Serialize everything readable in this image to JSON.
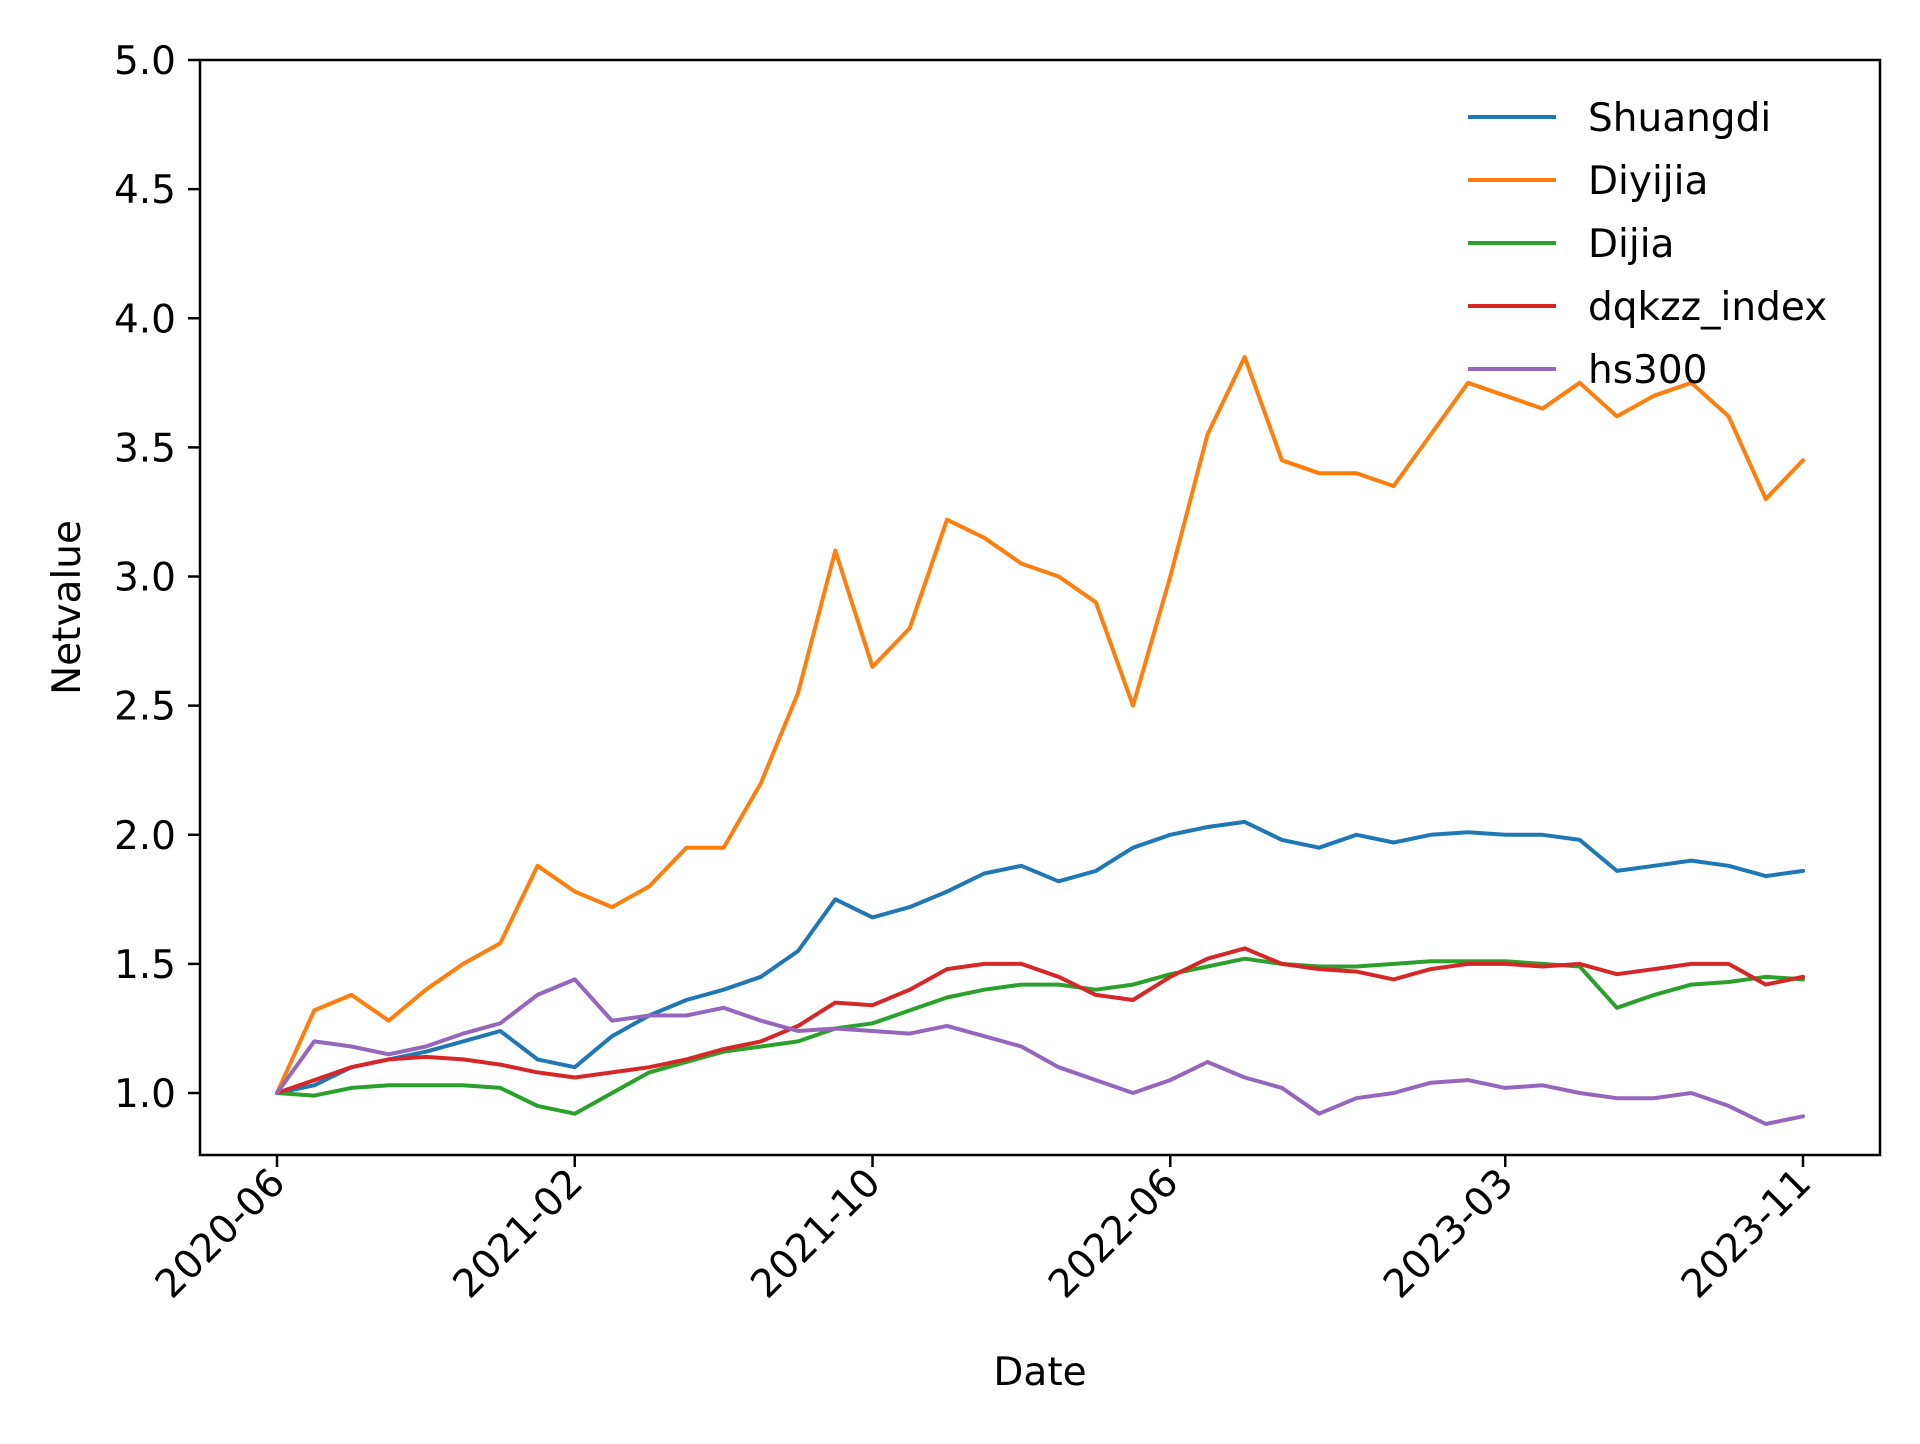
{
  "chart_data": {
    "type": "line",
    "xlabel": "Date",
    "ylabel": "Netvalue",
    "x_ticks": [
      "2020-06",
      "2021-02",
      "2021-10",
      "2022-06",
      "2023-03",
      "2023-11"
    ],
    "x_range": [
      "2020-06",
      "2023-11"
    ],
    "y_ticks": [
      "1.0",
      "1.5",
      "2.0",
      "2.5",
      "3.0",
      "3.5",
      "4.0",
      "4.5",
      "5.0"
    ],
    "ylim": [
      0.76,
      5.0
    ],
    "grid": false,
    "legend_position": "top-right",
    "series": [
      {
        "name": "Shuangdi",
        "color": "#1f77b4",
        "points": [
          [
            "2020-06",
            1.0
          ],
          [
            "2020-07",
            1.03
          ],
          [
            "2020-08",
            1.1
          ],
          [
            "2020-09",
            1.13
          ],
          [
            "2020-10",
            1.16
          ],
          [
            "2020-11",
            1.2
          ],
          [
            "2020-12",
            1.24
          ],
          [
            "2021-01",
            1.13
          ],
          [
            "2021-02",
            1.1
          ],
          [
            "2021-03",
            1.22
          ],
          [
            "2021-04",
            1.3
          ],
          [
            "2021-05",
            1.36
          ],
          [
            "2021-06",
            1.4
          ],
          [
            "2021-07",
            1.45
          ],
          [
            "2021-08",
            1.55
          ],
          [
            "2021-09",
            1.75
          ],
          [
            "2021-10",
            1.68
          ],
          [
            "2021-11",
            1.72
          ],
          [
            "2021-12",
            1.78
          ],
          [
            "2022-01",
            1.85
          ],
          [
            "2022-02",
            1.88
          ],
          [
            "2022-03",
            1.82
          ],
          [
            "2022-04",
            1.86
          ],
          [
            "2022-05",
            1.95
          ],
          [
            "2022-06",
            2.0
          ],
          [
            "2022-07",
            2.03
          ],
          [
            "2022-08",
            2.05
          ],
          [
            "2022-09",
            1.98
          ],
          [
            "2022-10",
            1.95
          ],
          [
            "2022-11",
            2.0
          ],
          [
            "2022-12",
            1.97
          ],
          [
            "2023-01",
            2.0
          ],
          [
            "2023-02",
            2.01
          ],
          [
            "2023-03",
            2.0
          ],
          [
            "2023-04",
            2.0
          ],
          [
            "2023-05",
            1.98
          ],
          [
            "2023-06",
            1.86
          ],
          [
            "2023-07",
            1.88
          ],
          [
            "2023-08",
            1.9
          ],
          [
            "2023-09",
            1.88
          ],
          [
            "2023-10",
            1.84
          ],
          [
            "2023-11",
            1.86
          ]
        ]
      },
      {
        "name": "Diyijia",
        "color": "#ff7f0e",
        "points": [
          [
            "2020-06",
            1.0
          ],
          [
            "2020-07",
            1.32
          ],
          [
            "2020-08",
            1.38
          ],
          [
            "2020-09",
            1.28
          ],
          [
            "2020-10",
            1.4
          ],
          [
            "2020-11",
            1.5
          ],
          [
            "2020-12",
            1.58
          ],
          [
            "2021-01",
            1.88
          ],
          [
            "2021-02",
            1.78
          ],
          [
            "2021-03",
            1.72
          ],
          [
            "2021-04",
            1.8
          ],
          [
            "2021-05",
            1.95
          ],
          [
            "2021-06",
            1.95
          ],
          [
            "2021-07",
            2.2
          ],
          [
            "2021-08",
            2.55
          ],
          [
            "2021-09",
            3.1
          ],
          [
            "2021-10",
            2.65
          ],
          [
            "2021-11",
            2.8
          ],
          [
            "2021-12",
            3.22
          ],
          [
            "2022-01",
            3.15
          ],
          [
            "2022-02",
            3.05
          ],
          [
            "2022-03",
            3.0
          ],
          [
            "2022-04",
            2.9
          ],
          [
            "2022-05",
            2.5
          ],
          [
            "2022-06",
            3.0
          ],
          [
            "2022-07",
            3.55
          ],
          [
            "2022-08",
            3.85
          ],
          [
            "2022-09",
            3.45
          ],
          [
            "2022-10",
            3.4
          ],
          [
            "2022-11",
            3.4
          ],
          [
            "2022-12",
            3.35
          ],
          [
            "2023-01",
            3.55
          ],
          [
            "2023-02",
            3.75
          ],
          [
            "2023-03",
            3.7
          ],
          [
            "2023-04",
            3.65
          ],
          [
            "2023-05",
            3.75
          ],
          [
            "2023-06",
            3.62
          ],
          [
            "2023-07",
            3.7
          ],
          [
            "2023-08",
            3.75
          ],
          [
            "2023-09",
            3.62
          ],
          [
            "2023-10",
            3.3
          ],
          [
            "2023-11",
            3.45
          ]
        ]
      },
      {
        "name": "Dijia",
        "color": "#2ca02c",
        "points": [
          [
            "2020-06",
            1.0
          ],
          [
            "2020-07",
            0.99
          ],
          [
            "2020-08",
            1.02
          ],
          [
            "2020-09",
            1.03
          ],
          [
            "2020-10",
            1.03
          ],
          [
            "2020-11",
            1.03
          ],
          [
            "2020-12",
            1.02
          ],
          [
            "2021-01",
            0.95
          ],
          [
            "2021-02",
            0.92
          ],
          [
            "2021-03",
            1.0
          ],
          [
            "2021-04",
            1.08
          ],
          [
            "2021-05",
            1.12
          ],
          [
            "2021-06",
            1.16
          ],
          [
            "2021-07",
            1.18
          ],
          [
            "2021-08",
            1.2
          ],
          [
            "2021-09",
            1.25
          ],
          [
            "2021-10",
            1.27
          ],
          [
            "2021-11",
            1.32
          ],
          [
            "2021-12",
            1.37
          ],
          [
            "2022-01",
            1.4
          ],
          [
            "2022-02",
            1.42
          ],
          [
            "2022-03",
            1.42
          ],
          [
            "2022-04",
            1.4
          ],
          [
            "2022-05",
            1.42
          ],
          [
            "2022-06",
            1.46
          ],
          [
            "2022-07",
            1.49
          ],
          [
            "2022-08",
            1.52
          ],
          [
            "2022-09",
            1.5
          ],
          [
            "2022-10",
            1.49
          ],
          [
            "2022-11",
            1.49
          ],
          [
            "2022-12",
            1.5
          ],
          [
            "2023-01",
            1.51
          ],
          [
            "2023-02",
            1.51
          ],
          [
            "2023-03",
            1.51
          ],
          [
            "2023-04",
            1.5
          ],
          [
            "2023-05",
            1.49
          ],
          [
            "2023-06",
            1.33
          ],
          [
            "2023-07",
            1.38
          ],
          [
            "2023-08",
            1.42
          ],
          [
            "2023-09",
            1.43
          ],
          [
            "2023-10",
            1.45
          ],
          [
            "2023-11",
            1.44
          ]
        ]
      },
      {
        "name": "dqkzz_index",
        "color": "#d62728",
        "points": [
          [
            "2020-06",
            1.0
          ],
          [
            "2020-07",
            1.05
          ],
          [
            "2020-08",
            1.1
          ],
          [
            "2020-09",
            1.13
          ],
          [
            "2020-10",
            1.14
          ],
          [
            "2020-11",
            1.13
          ],
          [
            "2020-12",
            1.11
          ],
          [
            "2021-01",
            1.08
          ],
          [
            "2021-02",
            1.06
          ],
          [
            "2021-03",
            1.08
          ],
          [
            "2021-04",
            1.1
          ],
          [
            "2021-05",
            1.13
          ],
          [
            "2021-06",
            1.17
          ],
          [
            "2021-07",
            1.2
          ],
          [
            "2021-08",
            1.26
          ],
          [
            "2021-09",
            1.35
          ],
          [
            "2021-10",
            1.34
          ],
          [
            "2021-11",
            1.4
          ],
          [
            "2021-12",
            1.48
          ],
          [
            "2022-01",
            1.5
          ],
          [
            "2022-02",
            1.5
          ],
          [
            "2022-03",
            1.45
          ],
          [
            "2022-04",
            1.38
          ],
          [
            "2022-05",
            1.36
          ],
          [
            "2022-06",
            1.45
          ],
          [
            "2022-07",
            1.52
          ],
          [
            "2022-08",
            1.56
          ],
          [
            "2022-09",
            1.5
          ],
          [
            "2022-10",
            1.48
          ],
          [
            "2022-11",
            1.47
          ],
          [
            "2022-12",
            1.44
          ],
          [
            "2023-01",
            1.48
          ],
          [
            "2023-02",
            1.5
          ],
          [
            "2023-03",
            1.5
          ],
          [
            "2023-04",
            1.49
          ],
          [
            "2023-05",
            1.5
          ],
          [
            "2023-06",
            1.46
          ],
          [
            "2023-07",
            1.48
          ],
          [
            "2023-08",
            1.5
          ],
          [
            "2023-09",
            1.5
          ],
          [
            "2023-10",
            1.42
          ],
          [
            "2023-11",
            1.45
          ]
        ]
      },
      {
        "name": "hs300",
        "color": "#9467bd",
        "points": [
          [
            "2020-06",
            1.0
          ],
          [
            "2020-07",
            1.2
          ],
          [
            "2020-08",
            1.18
          ],
          [
            "2020-09",
            1.15
          ],
          [
            "2020-10",
            1.18
          ],
          [
            "2020-11",
            1.23
          ],
          [
            "2020-12",
            1.27
          ],
          [
            "2021-01",
            1.38
          ],
          [
            "2021-02",
            1.44
          ],
          [
            "2021-03",
            1.28
          ],
          [
            "2021-04",
            1.3
          ],
          [
            "2021-05",
            1.3
          ],
          [
            "2021-06",
            1.33
          ],
          [
            "2021-07",
            1.28
          ],
          [
            "2021-08",
            1.24
          ],
          [
            "2021-09",
            1.25
          ],
          [
            "2021-10",
            1.24
          ],
          [
            "2021-11",
            1.23
          ],
          [
            "2021-12",
            1.26
          ],
          [
            "2022-01",
            1.22
          ],
          [
            "2022-02",
            1.18
          ],
          [
            "2022-03",
            1.1
          ],
          [
            "2022-04",
            1.05
          ],
          [
            "2022-05",
            1.0
          ],
          [
            "2022-06",
            1.05
          ],
          [
            "2022-07",
            1.12
          ],
          [
            "2022-08",
            1.06
          ],
          [
            "2022-09",
            1.02
          ],
          [
            "2022-10",
            0.92
          ],
          [
            "2022-11",
            0.98
          ],
          [
            "2022-12",
            1.0
          ],
          [
            "2023-01",
            1.04
          ],
          [
            "2023-02",
            1.05
          ],
          [
            "2023-03",
            1.02
          ],
          [
            "2023-04",
            1.03
          ],
          [
            "2023-05",
            1.0
          ],
          [
            "2023-06",
            0.98
          ],
          [
            "2023-07",
            0.98
          ],
          [
            "2023-08",
            1.0
          ],
          [
            "2023-09",
            0.95
          ],
          [
            "2023-10",
            0.88
          ],
          [
            "2023-11",
            0.91
          ]
        ]
      }
    ]
  }
}
